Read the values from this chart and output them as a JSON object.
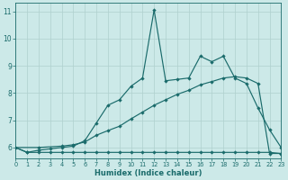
{
  "xlabel": "Humidex (Indice chaleur)",
  "bg_color": "#cce9e8",
  "line_color": "#1a6b6b",
  "grid_color": "#afd0ce",
  "xlim": [
    0,
    23
  ],
  "ylim": [
    5.6,
    11.3
  ],
  "yticks": [
    6,
    7,
    8,
    9,
    10,
    11
  ],
  "xticks": [
    0,
    1,
    2,
    3,
    4,
    5,
    6,
    7,
    8,
    9,
    10,
    11,
    12,
    13,
    14,
    15,
    16,
    17,
    18,
    19,
    20,
    21,
    22,
    23
  ],
  "line1_x": [
    0,
    1,
    2,
    3,
    4,
    5,
    6,
    7,
    8,
    9,
    10,
    11,
    12,
    13,
    14,
    15,
    16,
    17,
    18,
    19,
    20,
    21,
    22,
    23
  ],
  "line1_y": [
    6.0,
    5.82,
    5.82,
    5.82,
    5.82,
    5.82,
    5.82,
    5.82,
    5.82,
    5.82,
    5.82,
    5.82,
    5.82,
    5.82,
    5.82,
    5.82,
    5.82,
    5.82,
    5.82,
    5.82,
    5.82,
    5.82,
    5.82,
    5.78
  ],
  "line2_x": [
    0,
    1,
    2,
    3,
    4,
    5,
    6,
    7,
    8,
    9,
    10,
    11,
    12,
    13,
    14,
    15,
    16,
    17,
    18,
    19,
    20,
    21,
    22,
    23
  ],
  "line2_y": [
    6.0,
    5.82,
    5.9,
    5.95,
    6.0,
    6.05,
    6.25,
    6.9,
    7.55,
    7.75,
    8.25,
    8.55,
    11.05,
    8.45,
    8.5,
    8.55,
    9.35,
    9.15,
    9.35,
    8.55,
    8.35,
    7.45,
    6.65,
    6.0
  ],
  "line3_x": [
    0,
    2,
    4,
    5,
    6,
    7,
    8,
    9,
    10,
    11,
    12,
    13,
    14,
    15,
    16,
    17,
    18,
    19,
    20,
    21,
    22,
    23
  ],
  "line3_y": [
    6.0,
    6.0,
    6.05,
    6.1,
    6.2,
    6.45,
    6.62,
    6.78,
    7.05,
    7.3,
    7.55,
    7.75,
    7.95,
    8.1,
    8.3,
    8.42,
    8.55,
    8.6,
    8.55,
    8.35,
    5.78,
    5.78
  ]
}
